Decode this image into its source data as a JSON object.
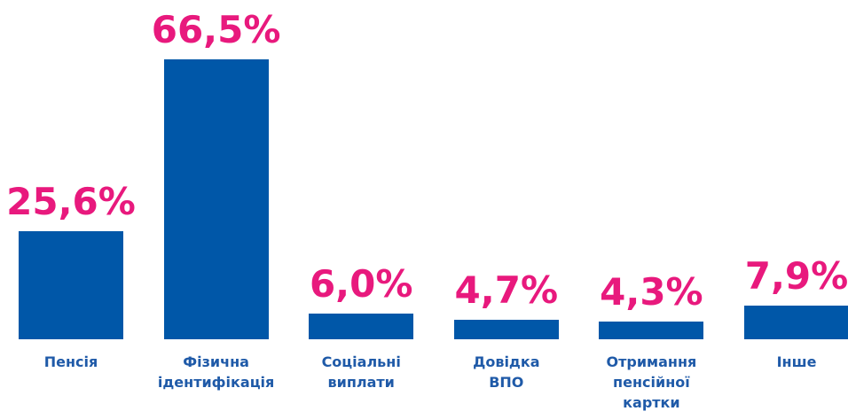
{
  "chart_data": {
    "type": "bar",
    "categories": [
      "Пенсія",
      "Фізична\nідентифікація",
      "Соціальні\nвиплати",
      "Довідка\nВПО",
      "Отримання\nпенсійної\nкартки",
      "Інше"
    ],
    "values": [
      25.6,
      66.5,
      6.0,
      4.7,
      4.3,
      7.9
    ],
    "value_labels": [
      "25,6%",
      "66,5%",
      "6,0%",
      "4,7%",
      "4,3%",
      "7,9%"
    ],
    "color": "#0057a8",
    "label_color": "#e8197d",
    "category_color": "#1f5aa8"
  }
}
